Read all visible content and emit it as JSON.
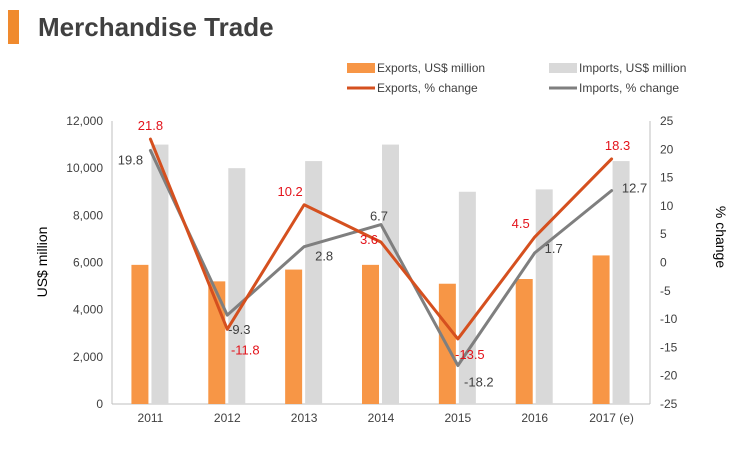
{
  "header": {
    "title": "Merchandise Trade"
  },
  "colors": {
    "exports_bar": "#f79646",
    "imports_bar": "#d9d9d9",
    "exports_line": "#d5501f",
    "imports_line": "#7f7f7f",
    "exports_label": "#e3131b",
    "imports_label": "#404040",
    "title_accent": "#f08a2e"
  },
  "chart_data": {
    "type": "bar",
    "categories": [
      "2011",
      "2012",
      "2013",
      "2014",
      "2015",
      "2016",
      "2017 (e)"
    ],
    "bar_series": [
      {
        "name": "Exports, US$ million",
        "values": [
          5900,
          5200,
          5700,
          5900,
          5100,
          5300,
          6300
        ]
      },
      {
        "name": "Imports, US$ million",
        "values": [
          11000,
          10000,
          10300,
          11000,
          9000,
          9100,
          10300
        ]
      }
    ],
    "line_series": [
      {
        "name": "Exports, % change",
        "values": [
          21.8,
          -11.8,
          10.2,
          3.6,
          -13.5,
          4.5,
          18.3
        ],
        "labels": [
          "21.8",
          "-11.8",
          "10.2",
          "3.6",
          "-13.5",
          "4.5",
          "18.3"
        ]
      },
      {
        "name": "Imports, % change",
        "values": [
          19.8,
          -9.3,
          2.8,
          6.7,
          -18.2,
          1.7,
          12.7
        ],
        "labels": [
          "19.8",
          "-9.3",
          "2.8",
          "6.7",
          "-18.2",
          "1.7",
          "12.7"
        ]
      }
    ],
    "ylabel": "US$ million",
    "y2label": "% change",
    "ylim": [
      0,
      12000
    ],
    "y2lim": [
      -25,
      25
    ],
    "yticks": [
      "0",
      "2,000",
      "4,000",
      "6,000",
      "8,000",
      "10,000",
      "12,000"
    ],
    "y2ticks": [
      "-25",
      "-20",
      "-15",
      "-10",
      "-5",
      "0",
      "5",
      "10",
      "15",
      "20",
      "25"
    ],
    "legend_position": "top",
    "grid": false
  }
}
